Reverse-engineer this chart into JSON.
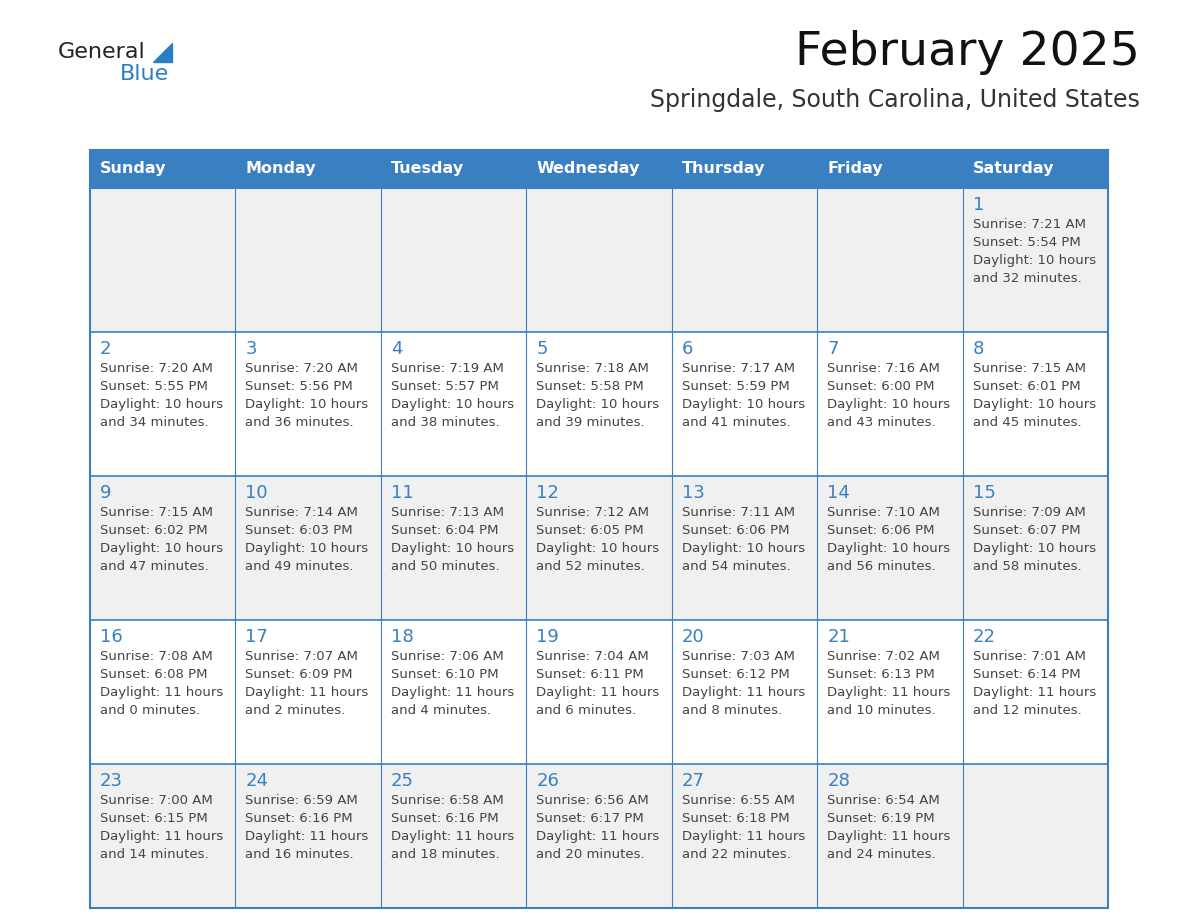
{
  "title": "February 2025",
  "subtitle": "Springdale, South Carolina, United States",
  "header_color": "#3A7FC1",
  "header_text_color": "#FFFFFF",
  "cell_bg_white": "#FFFFFF",
  "cell_bg_gray": "#F0F0F0",
  "border_color": "#3A7FC1",
  "day_number_color": "#3A7FC1",
  "cell_text_color": "#444444",
  "days_of_week": [
    "Sunday",
    "Monday",
    "Tuesday",
    "Wednesday",
    "Thursday",
    "Friday",
    "Saturday"
  ],
  "calendar_data": [
    [
      null,
      null,
      null,
      null,
      null,
      null,
      1
    ],
    [
      2,
      3,
      4,
      5,
      6,
      7,
      8
    ],
    [
      9,
      10,
      11,
      12,
      13,
      14,
      15
    ],
    [
      16,
      17,
      18,
      19,
      20,
      21,
      22
    ],
    [
      23,
      24,
      25,
      26,
      27,
      28,
      null
    ]
  ],
  "sunrise_data": {
    "1": "7:21 AM",
    "2": "7:20 AM",
    "3": "7:20 AM",
    "4": "7:19 AM",
    "5": "7:18 AM",
    "6": "7:17 AM",
    "7": "7:16 AM",
    "8": "7:15 AM",
    "9": "7:15 AM",
    "10": "7:14 AM",
    "11": "7:13 AM",
    "12": "7:12 AM",
    "13": "7:11 AM",
    "14": "7:10 AM",
    "15": "7:09 AM",
    "16": "7:08 AM",
    "17": "7:07 AM",
    "18": "7:06 AM",
    "19": "7:04 AM",
    "20": "7:03 AM",
    "21": "7:02 AM",
    "22": "7:01 AM",
    "23": "7:00 AM",
    "24": "6:59 AM",
    "25": "6:58 AM",
    "26": "6:56 AM",
    "27": "6:55 AM",
    "28": "6:54 AM"
  },
  "sunset_data": {
    "1": "5:54 PM",
    "2": "5:55 PM",
    "3": "5:56 PM",
    "4": "5:57 PM",
    "5": "5:58 PM",
    "6": "5:59 PM",
    "7": "6:00 PM",
    "8": "6:01 PM",
    "9": "6:02 PM",
    "10": "6:03 PM",
    "11": "6:04 PM",
    "12": "6:05 PM",
    "13": "6:06 PM",
    "14": "6:06 PM",
    "15": "6:07 PM",
    "16": "6:08 PM",
    "17": "6:09 PM",
    "18": "6:10 PM",
    "19": "6:11 PM",
    "20": "6:12 PM",
    "21": "6:13 PM",
    "22": "6:14 PM",
    "23": "6:15 PM",
    "24": "6:16 PM",
    "25": "6:16 PM",
    "26": "6:17 PM",
    "27": "6:18 PM",
    "28": "6:19 PM"
  },
  "daylight_hours": {
    "1": "10",
    "2": "10",
    "3": "10",
    "4": "10",
    "5": "10",
    "6": "10",
    "7": "10",
    "8": "10",
    "9": "10",
    "10": "10",
    "11": "10",
    "12": "10",
    "13": "10",
    "14": "10",
    "15": "10",
    "16": "11",
    "17": "11",
    "18": "11",
    "19": "11",
    "20": "11",
    "21": "11",
    "22": "11",
    "23": "11",
    "24": "11",
    "25": "11",
    "26": "11",
    "27": "11",
    "28": "11"
  },
  "daylight_minutes": {
    "1": "32",
    "2": "34",
    "3": "36",
    "4": "38",
    "5": "39",
    "6": "41",
    "7": "43",
    "8": "45",
    "9": "47",
    "10": "49",
    "11": "50",
    "12": "52",
    "13": "54",
    "14": "56",
    "15": "58",
    "16": "0",
    "17": "2",
    "18": "4",
    "19": "6",
    "20": "8",
    "21": "10",
    "22": "12",
    "23": "14",
    "24": "16",
    "25": "18",
    "26": "20",
    "27": "22",
    "28": "24"
  },
  "logo_text_general": "General",
  "logo_text_blue": "Blue",
  "logo_color_general": "#222222",
  "logo_color_blue": "#2B7EC2",
  "logo_triangle_color": "#2B7EC2",
  "fig_width": 11.88,
  "fig_height": 9.18,
  "dpi": 100
}
